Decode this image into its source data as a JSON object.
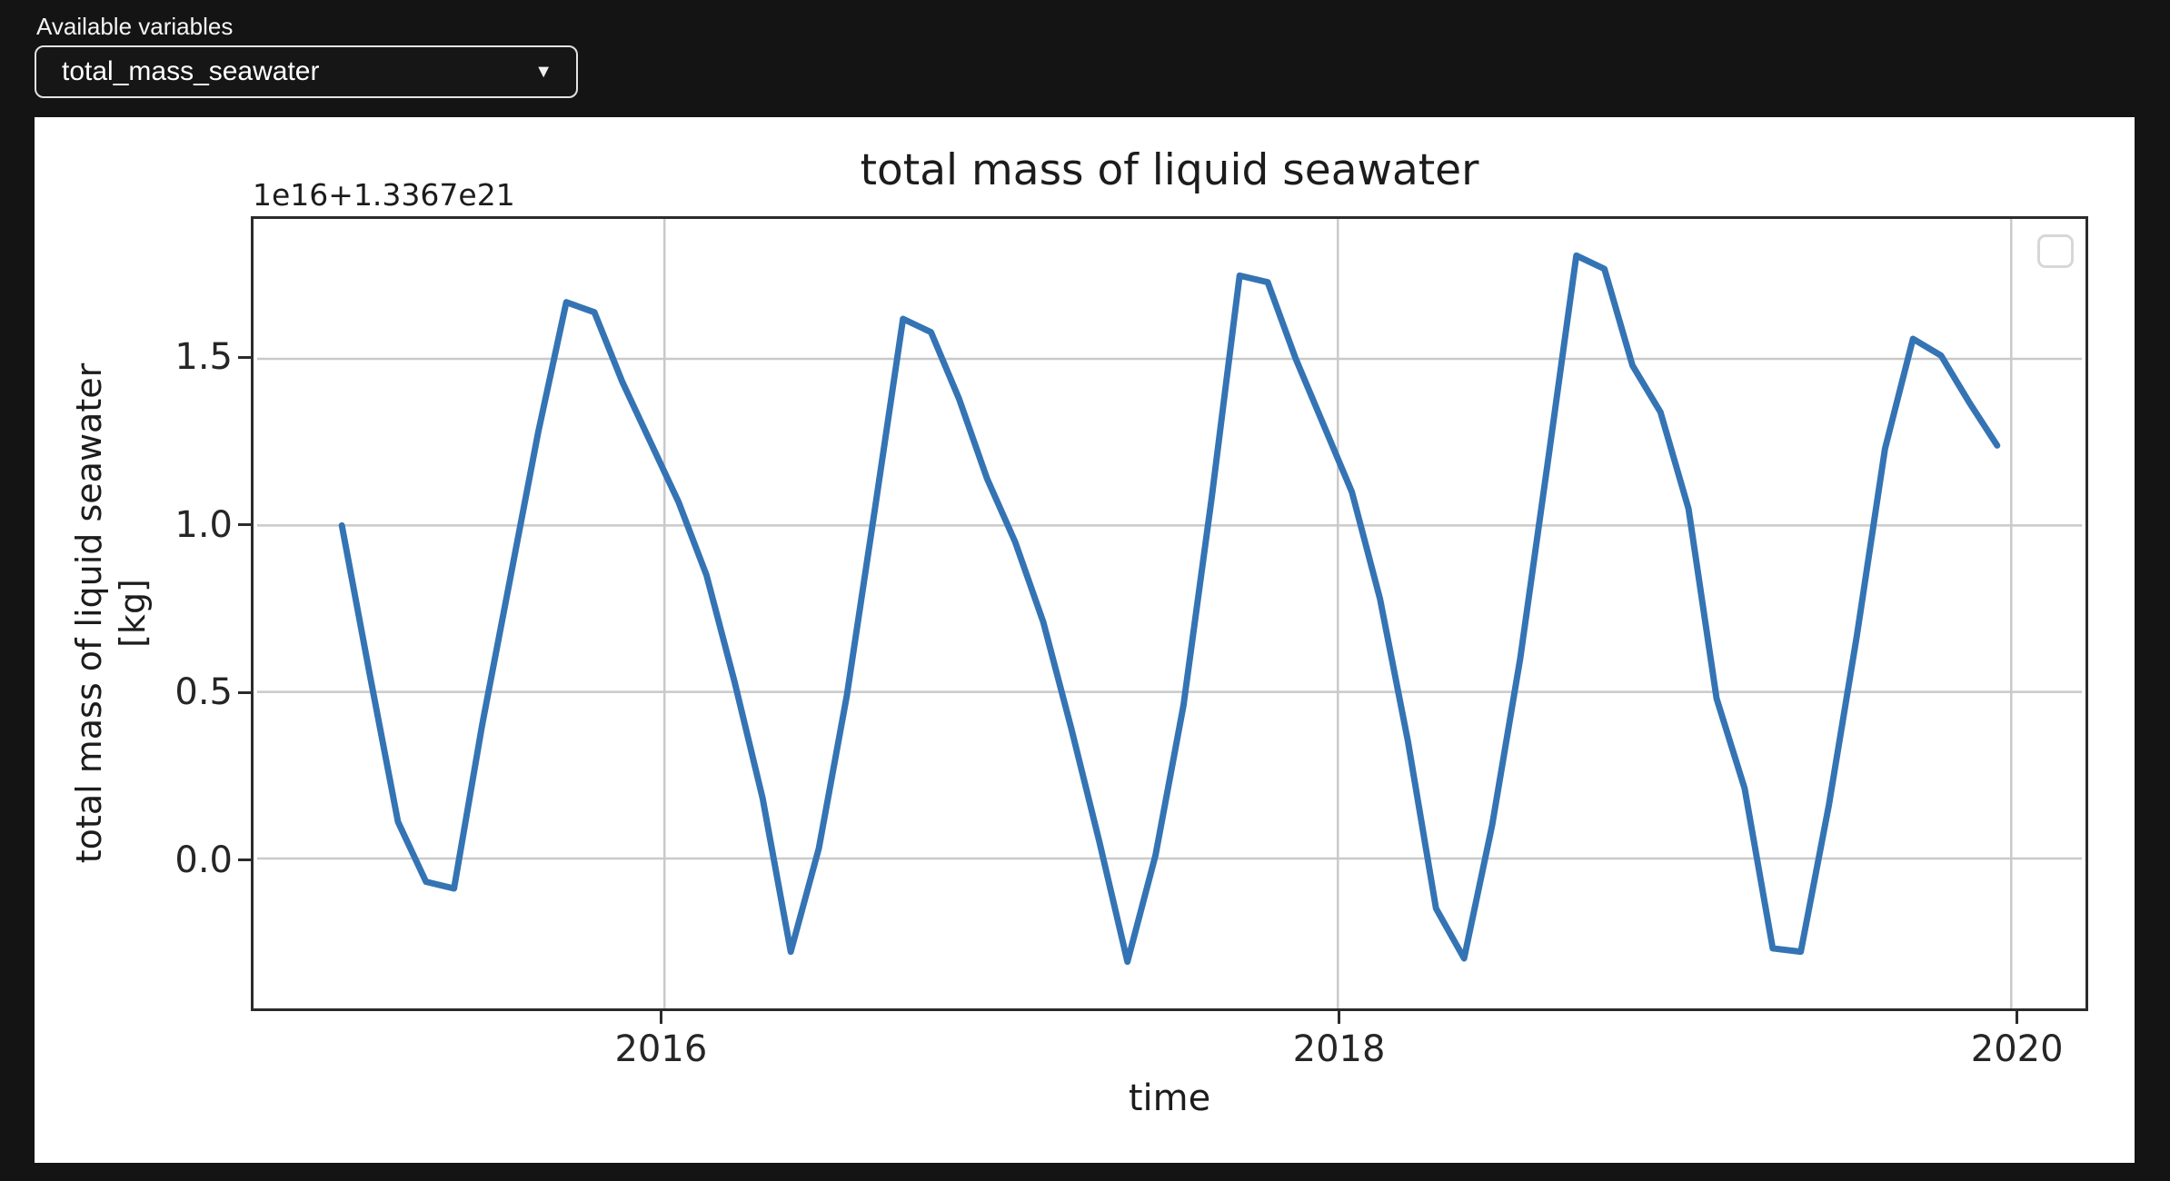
{
  "page": {
    "background": "#141414",
    "panel_background": "#ffffff"
  },
  "variable_selector": {
    "label": "Available variables",
    "selected": "total_mass_seawater",
    "caret_icon": "▼"
  },
  "figure": {
    "title": "total mass of liquid seawater",
    "offset_text": "1e16+1.3367e21",
    "xlabel": "time",
    "ylabel_line1": "total mass of liquid seawater",
    "ylabel_line2": "[kg]"
  },
  "chart_data": {
    "type": "line",
    "title": "total mass of liquid seawater",
    "xlabel": "time",
    "ylabel": "total mass of liquid seawater [kg]",
    "y_offset_text": "1e16+1.3367e21",
    "y_offset": "1.3367e21 kg",
    "y_unit_scale": "1e16 kg",
    "sampling": "monthly",
    "time_start": "2015-01",
    "time_end": "2019-12",
    "xlim": [
      2014.79,
      2020.21
    ],
    "ylim": [
      -0.45,
      1.92
    ],
    "xticks": [
      2016,
      2018,
      2020
    ],
    "yticks": [
      0.0,
      0.5,
      1.0,
      1.5
    ],
    "grid": true,
    "grid_color": "#c9c9c9",
    "legend_position": "upper right",
    "legend_empty": true,
    "series": [
      {
        "name": "total_mass_seawater",
        "color": "#3474b4",
        "line_width": 7,
        "values": [
          1.0,
          0.55,
          0.11,
          -0.07,
          -0.09,
          0.4,
          0.84,
          1.28,
          1.67,
          1.64,
          1.43,
          1.25,
          1.07,
          0.85,
          0.53,
          0.18,
          -0.28,
          0.03,
          0.49,
          1.05,
          1.62,
          1.58,
          1.38,
          1.14,
          0.95,
          0.71,
          0.39,
          0.05,
          -0.31,
          0.01,
          0.46,
          1.08,
          1.75,
          1.73,
          1.5,
          1.3,
          1.1,
          0.78,
          0.35,
          -0.15,
          -0.3,
          0.1,
          0.6,
          1.2,
          1.81,
          1.77,
          1.48,
          1.34,
          1.05,
          0.48,
          0.21,
          -0.27,
          -0.28,
          0.16,
          0.67,
          1.23,
          1.56,
          1.51,
          1.37,
          1.24
        ]
      }
    ]
  }
}
